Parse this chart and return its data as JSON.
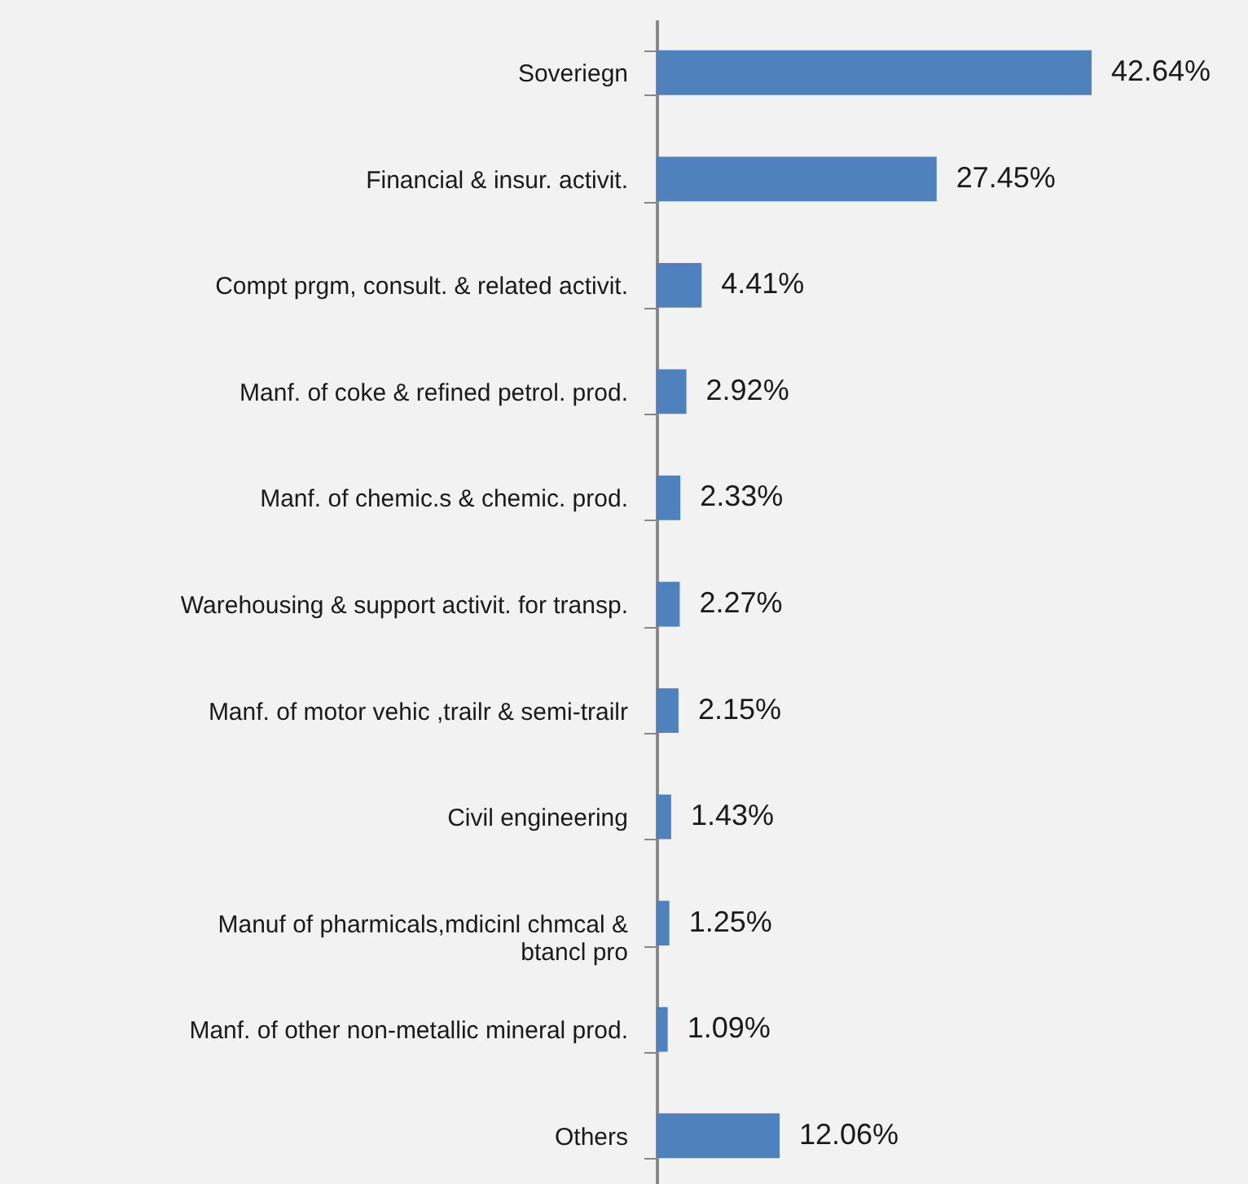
{
  "chart_data": {
    "type": "bar",
    "orientation": "horizontal",
    "color": "#4f81bd",
    "categories": [
      "Soveriegn",
      "Financial & insur. activit.",
      "Compt prgm, consult. & related activit.",
      "Manf. of coke & refined petrol. prod.",
      "Manf. of chemic.s & chemic. prod.",
      "Warehousing & support activit. for transp.",
      "Manf. of motor vehic ,trailr & semi-trailr",
      "Civil engineering",
      "Manuf of pharmicals,mdicinl chmcal & btancl pro",
      "Manf. of other non-metallic mineral prod.",
      "Others"
    ],
    "values": [
      42.64,
      27.45,
      4.41,
      2.92,
      2.33,
      2.27,
      2.15,
      1.43,
      1.25,
      1.09,
      12.06
    ],
    "value_labels": [
      "42.64%",
      "27.45%",
      "4.41%",
      "2.92%",
      "2.33%",
      "2.27%",
      "2.15%",
      "1.43%",
      "1.25%",
      "1.09%",
      "12.06%"
    ],
    "tick_labels": "y"
  }
}
